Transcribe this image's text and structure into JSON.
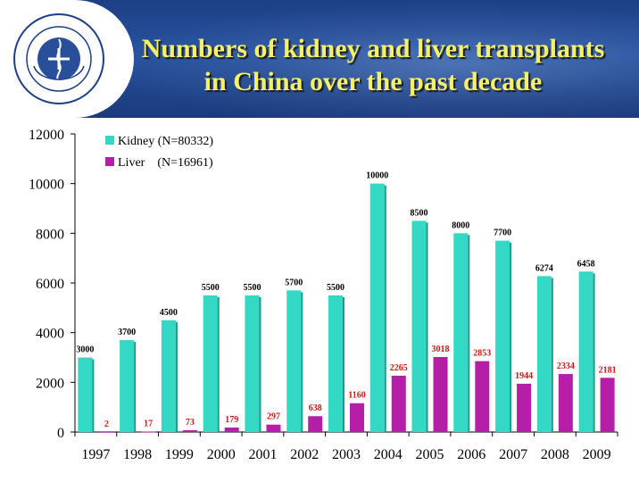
{
  "header": {
    "title_line1": "Numbers of kidney and liver transplants",
    "title_line2": "in China over the past decade",
    "logo_icon": "ministry-of-health-emblem"
  },
  "chart_data": {
    "type": "bar",
    "title": "Numbers of kidney and liver transplants in China over the past decade",
    "xlabel": "",
    "ylabel": "",
    "ylim": [
      0,
      12000
    ],
    "yticks": [
      0,
      2000,
      4000,
      6000,
      8000,
      10000,
      12000
    ],
    "categories": [
      "1997",
      "1998",
      "1999",
      "2000",
      "2001",
      "2002",
      "2003",
      "2004",
      "2005",
      "2006",
      "2007",
      "2008",
      "2009"
    ],
    "series": [
      {
        "name": "Kidney (N=80332)",
        "color": "#33d9c4",
        "values": [
          3000,
          3700,
          4500,
          5500,
          5500,
          5700,
          5500,
          10000,
          8500,
          8000,
          7700,
          6274,
          6458
        ]
      },
      {
        "name": "Liver    (N=16961)",
        "color": "#b51fa8",
        "values": [
          2,
          17,
          73,
          179,
          297,
          638,
          1160,
          2265,
          3018,
          2853,
          1944,
          2334,
          2181
        ]
      }
    ],
    "legend_position": "top-left",
    "grid": false,
    "data_label_colors": {
      "Kidney": "#000000",
      "Liver": "#d21414"
    }
  }
}
